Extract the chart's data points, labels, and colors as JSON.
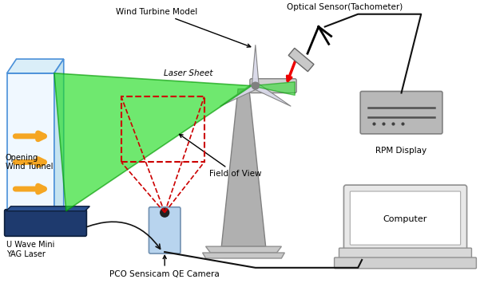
{
  "fig_width": 6.06,
  "fig_height": 3.55,
  "dpi": 100,
  "bg_color": "#ffffff",
  "labels": {
    "wind_turbine_model": "Wind Turbine Model",
    "optical_sensor": "Optical Sensor(Tachometer)",
    "laser_sheet": "Laser Sheet",
    "opening_wind_tunnel": "Opening\nWind Tunnel",
    "field_of_view": "Field of View",
    "u_wave_mini": "U Wave Mini\nYAG Laser",
    "pco_camera": "PCO Sensicam QE Camera",
    "rpm_display": "RPM Display",
    "computer": "Computer"
  },
  "colors": {
    "wind_tunnel_fill": "#f0f8ff",
    "wind_tunnel_edge": "#4a90d9",
    "wind_tunnel_top": "#daeef8",
    "wind_tunnel_right": "#c5e3f0",
    "laser_green_fill": "#22dd22",
    "laser_green_edge": "#009900",
    "laser_red": "#ee0000",
    "arrow_orange_fill": "#f5a623",
    "arrow_orange_edge": "#d4881a",
    "dashed_red": "#cc0000",
    "yag_laser": "#1e3a6e",
    "yag_laser_edge": "#0d1f3c",
    "camera_fill": "#b8d4ee",
    "camera_edge": "#7090b0",
    "turbine_pole": "#b0b0b0",
    "turbine_pole_edge": "#808080",
    "turbine_base_fill": "#c8c8c8",
    "turbine_base_edge": "#909090",
    "turbine_nacelle": "#d0d0d0",
    "turbine_blade": "#d8d8e8",
    "rpm_box_fill": "#b8b8b8",
    "rpm_box_edge": "#808080",
    "computer_fill": "#e8e8e8",
    "computer_edge": "#909090",
    "computer_screen": "#ffffff",
    "cable": "#111111",
    "sensor_fill": "#c8c8c8",
    "text_color": "#000000"
  },
  "xlim": [
    0,
    6.06
  ],
  "ylim": [
    0,
    3.55
  ]
}
